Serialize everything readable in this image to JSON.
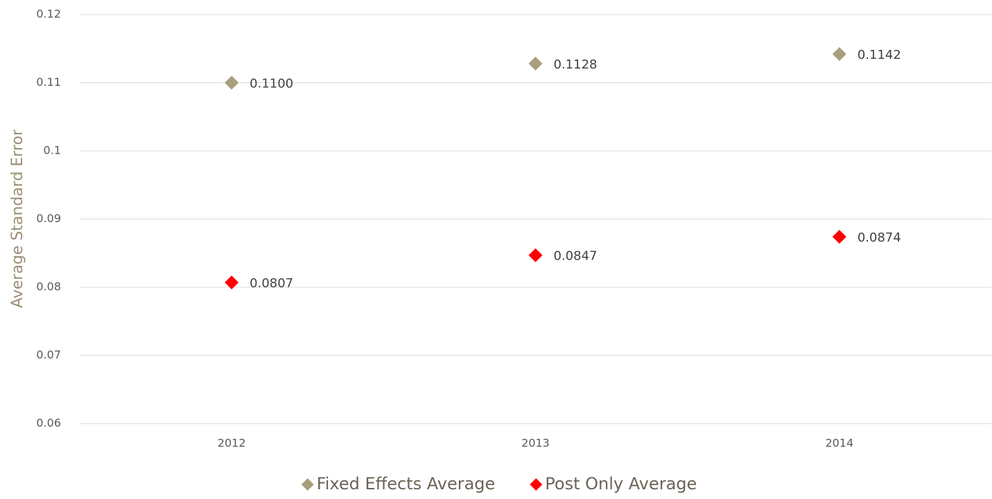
{
  "chart_data": {
    "type": "scatter",
    "y_label": "Average Standard Error",
    "categories": [
      "2012",
      "2013",
      "2014"
    ],
    "series": [
      {
        "name": "Fixed Effects Average",
        "color": "#a89f7c",
        "values": [
          0.11,
          0.1128,
          0.1142
        ],
        "value_labels": [
          "0.1100",
          "0.1128",
          "0.1142"
        ]
      },
      {
        "name": "Post Only Average",
        "color": "#ff0000",
        "values": [
          0.0807,
          0.0847,
          0.0874
        ],
        "value_labels": [
          "0.0807",
          "0.0847",
          "0.0874"
        ]
      }
    ],
    "ylim": [
      0.06,
      0.12
    ],
    "yticks": [
      0.06,
      0.07,
      0.08,
      0.09,
      0.1,
      0.11,
      0.12
    ],
    "grid": true,
    "legend": "bottom"
  }
}
